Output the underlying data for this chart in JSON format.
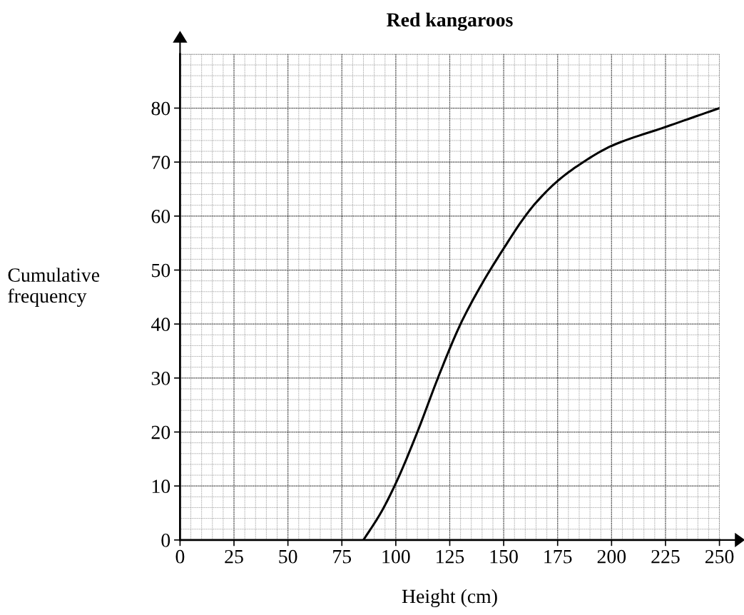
{
  "chart_data": {
    "type": "line",
    "title": "Red kangaroos",
    "xlabel": "Height (cm)",
    "ylabel": "Cumulative\nfrequency",
    "x": [
      85,
      93,
      100,
      110,
      120,
      130,
      140,
      150,
      160,
      165,
      175,
      185,
      200,
      225,
      250
    ],
    "series": [
      {
        "color": "#000000",
        "values": [
          0,
          5,
          10.5,
          20,
          30.5,
          40,
          47.5,
          54,
          60,
          62.5,
          66.5,
          69.5,
          73,
          76.5,
          80
        ]
      }
    ],
    "xlim": [
      0,
      250
    ],
    "ylim": [
      0,
      90
    ],
    "xticks": [
      0,
      25,
      50,
      75,
      100,
      125,
      150,
      175,
      200,
      225,
      250
    ],
    "yticks": [
      0,
      10,
      20,
      30,
      40,
      50,
      60,
      70,
      80
    ],
    "grid": true,
    "legend": false,
    "marker": "none",
    "line_style": "solid"
  }
}
